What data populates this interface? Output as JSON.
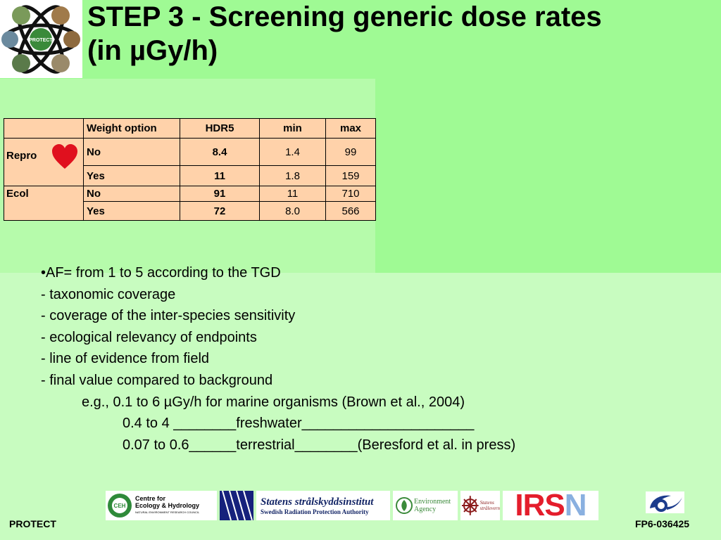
{
  "title": {
    "line1": "STEP 3 - Screening generic dose rates",
    "line2": "(in µGy/h)"
  },
  "logo": {
    "text": "PROTECT"
  },
  "table": {
    "headers": [
      "",
      "Weight option",
      "HDR5",
      "min",
      "max"
    ],
    "groups": [
      {
        "label": "Repro",
        "icon": "heart-icon",
        "rows": [
          {
            "weight": "No",
            "hdr5": "8.4",
            "min": "1.4",
            "max": "99"
          },
          {
            "weight": "Yes",
            "hdr5": "11",
            "min": "1.8",
            "max": "159"
          }
        ]
      },
      {
        "label": "Ecol",
        "rows": [
          {
            "weight": "No",
            "hdr5": "91",
            "min": "11",
            "max": "710"
          },
          {
            "weight": "Yes",
            "hdr5": "72",
            "min": "8.0",
            "max": "566"
          }
        ]
      }
    ]
  },
  "bullets": [
    "•AF= from 1 to 5 according to the TGD",
    "- taxonomic coverage",
    "- coverage of the inter-species sensitivity",
    "- ecological relevancy of endpoints",
    "- line of evidence from field",
    "- final value compared to background",
    "e.g., 0.1 to 6 µGy/h for marine organisms (Brown et al., 2004)",
    "0.4 to 4 ________freshwater______________________",
    "0.07 to 0.6______terrestrial________(Beresford et al. in press)"
  ],
  "partners": {
    "ceh_line1": "Centre for",
    "ceh_line2": "Ecology & Hydrology",
    "ceh_sub": "NATURAL ENVIRONMENT RESEARCH COUNCIL",
    "ceh_badge": "CEH",
    "ssi_name": "Statens strålskyddsinstitut",
    "ssi_sub": "Swedish Radiation Protection Authority",
    "ea_line1": "Environment",
    "ea_line2": "Agency",
    "statens_line1": "Statens",
    "statens_line2": "strålevern",
    "irsn_main": "IRS",
    "irsn_last": "N"
  },
  "footer": {
    "left": "PROTECT",
    "right": "FP6-036425"
  },
  "colors": {
    "background": "#c8fcc0",
    "band": "#9ffa94",
    "table_fill": "#ffd2aa",
    "heart": "#e0101e"
  }
}
